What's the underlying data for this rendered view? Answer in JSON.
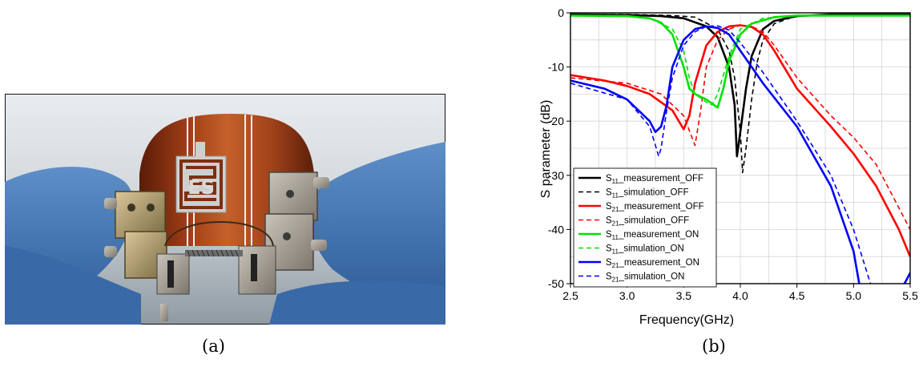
{
  "captions": {
    "a": "(a)",
    "b": "(b)"
  },
  "photo": {
    "logo_text": "ES"
  },
  "chart_data": {
    "type": "line",
    "xlabel": "Frequency(GHz)",
    "ylabel": "S parameter (dB)",
    "xlim": [
      2.5,
      5.5
    ],
    "ylim": [
      -50,
      0
    ],
    "xticks": [
      2.5,
      3.0,
      3.5,
      4.0,
      4.5,
      5.0,
      5.5
    ],
    "yticks": [
      0,
      -10,
      -20,
      -30,
      -40,
      -50
    ],
    "grid": true,
    "legend_position": "bottom-left",
    "series": [
      {
        "sub": "11",
        "name": "_measurement_OFF",
        "color": "#000000",
        "dashed": false,
        "x": [
          2.5,
          3.0,
          3.3,
          3.5,
          3.7,
          3.8,
          3.9,
          3.95,
          3.97,
          4.0,
          4.05,
          4.1,
          4.2,
          4.3,
          4.5,
          4.8,
          5.2,
          5.5
        ],
        "y": [
          -0.3,
          -0.4,
          -0.6,
          -1.0,
          -2.5,
          -4.5,
          -10,
          -17,
          -26.5,
          -22,
          -14,
          -8,
          -3,
          -1.5,
          -0.6,
          -0.3,
          -0.3,
          -0.3
        ]
      },
      {
        "sub": "11",
        "name": "_simulation_OFF",
        "color": "#000000",
        "dashed": true,
        "x": [
          2.5,
          3.0,
          3.4,
          3.6,
          3.8,
          3.9,
          3.95,
          4.0,
          4.02,
          4.05,
          4.1,
          4.15,
          4.2,
          4.3,
          4.5,
          5.0,
          5.5
        ],
        "y": [
          -0.3,
          -0.3,
          -0.5,
          -0.8,
          -3,
          -7,
          -12,
          -22,
          -29.5,
          -25,
          -16,
          -9,
          -5,
          -2,
          -0.5,
          -0.3,
          -0.3
        ]
      },
      {
        "sub": "21",
        "name": "_measurement_OFF",
        "color": "#ff0000",
        "dashed": false,
        "x": [
          2.5,
          2.8,
          3.0,
          3.2,
          3.4,
          3.5,
          3.55,
          3.6,
          3.7,
          3.8,
          3.9,
          4.0,
          4.1,
          4.2,
          4.3,
          4.5,
          4.8,
          5.0,
          5.2,
          5.4,
          5.5
        ],
        "y": [
          -11.5,
          -12.5,
          -13.5,
          -15,
          -18,
          -21.5,
          -19,
          -13,
          -6,
          -3.5,
          -2.5,
          -2.3,
          -2.6,
          -4,
          -7,
          -14,
          -21,
          -26,
          -32,
          -40,
          -45
        ]
      },
      {
        "sub": "21",
        "name": "_simulation_OFF",
        "color": "#ff0000",
        "dashed": true,
        "x": [
          2.5,
          3.0,
          3.3,
          3.5,
          3.6,
          3.65,
          3.7,
          3.8,
          3.9,
          4.0,
          4.1,
          4.2,
          4.3,
          4.5,
          4.8,
          5.0,
          5.2,
          5.5
        ],
        "y": [
          -12,
          -13,
          -15,
          -19,
          -24.5,
          -18,
          -10,
          -5,
          -3,
          -2.3,
          -2.5,
          -3.5,
          -6,
          -12,
          -19,
          -23,
          -28,
          -40
        ]
      },
      {
        "sub": "11",
        "name": "_measurement_ON",
        "color": "#00e000",
        "dashed": false,
        "x": [
          2.5,
          3.0,
          3.2,
          3.3,
          3.4,
          3.5,
          3.55,
          3.6,
          3.7,
          3.8,
          3.85,
          3.9,
          4.0,
          4.1,
          4.3,
          4.5,
          5.0,
          5.5
        ],
        "y": [
          -0.5,
          -0.6,
          -1,
          -1.8,
          -4,
          -10,
          -14,
          -15,
          -16,
          -17.5,
          -14,
          -9,
          -4,
          -2,
          -0.8,
          -0.5,
          -0.5,
          -0.5
        ]
      },
      {
        "sub": "11",
        "name": "_simulation_ON",
        "color": "#00e000",
        "dashed": true,
        "x": [
          2.5,
          3.0,
          3.2,
          3.4,
          3.5,
          3.55,
          3.6,
          3.7,
          3.75,
          3.8,
          3.9,
          4.0,
          4.2,
          4.5,
          5.0,
          5.5
        ],
        "y": [
          -0.5,
          -0.6,
          -1,
          -3,
          -7,
          -12,
          -15,
          -16.5,
          -17,
          -15,
          -8,
          -3,
          -1,
          -0.5,
          -0.5,
          -0.5
        ]
      },
      {
        "sub": "21",
        "name": "_measurement_ON",
        "color": "#0000ff",
        "dashed": false,
        "x": [
          2.5,
          2.8,
          3.0,
          3.2,
          3.25,
          3.3,
          3.35,
          3.4,
          3.5,
          3.6,
          3.7,
          3.8,
          3.9,
          4.0,
          4.2,
          4.5,
          4.8,
          5.0,
          5.05,
          5.1,
          5.45,
          5.5
        ],
        "y": [
          -12.5,
          -14,
          -16,
          -20,
          -22,
          -21,
          -17,
          -10,
          -5,
          -3,
          -2.5,
          -2.8,
          -4,
          -7,
          -13,
          -21,
          -32,
          -44,
          -50,
          -53,
          -50,
          -48
        ]
      },
      {
        "sub": "21",
        "name": "_simulation_ON",
        "color": "#0000ff",
        "dashed": true,
        "x": [
          2.5,
          3.0,
          3.2,
          3.28,
          3.3,
          3.35,
          3.4,
          3.5,
          3.6,
          3.7,
          3.8,
          3.9,
          4.0,
          4.2,
          4.5,
          4.8,
          5.0,
          5.15,
          5.2
        ],
        "y": [
          -13,
          -16,
          -21,
          -26.5,
          -25,
          -18,
          -12,
          -6,
          -3.5,
          -2.5,
          -2.4,
          -3.2,
          -5.5,
          -11,
          -20,
          -30,
          -40,
          -50,
          -53
        ]
      }
    ]
  }
}
